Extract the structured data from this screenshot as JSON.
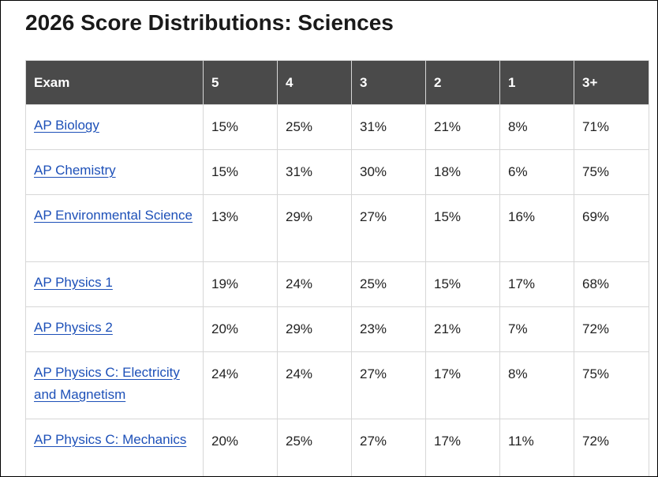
{
  "page": {
    "title": "2026 Score Distributions: Sciences"
  },
  "table": {
    "headers": [
      "Exam",
      "5",
      "4",
      "3",
      "2",
      "1",
      "3+"
    ],
    "rows": [
      {
        "exam": "AP Biology",
        "values": [
          "15%",
          "25%",
          "31%",
          "21%",
          "8%",
          "71%"
        ]
      },
      {
        "exam": "AP Chemistry",
        "values": [
          "15%",
          "31%",
          "30%",
          "18%",
          "6%",
          "75%"
        ]
      },
      {
        "exam": "AP Environmental Science",
        "values": [
          "13%",
          "29%",
          "27%",
          "15%",
          "16%",
          "69%"
        ]
      },
      {
        "exam": "AP Physics 1",
        "values": [
          "19%",
          "24%",
          "25%",
          "15%",
          "17%",
          "68%"
        ]
      },
      {
        "exam": "AP Physics 2",
        "values": [
          "20%",
          "29%",
          "23%",
          "21%",
          "7%",
          "72%"
        ]
      },
      {
        "exam": "AP Physics C: Electricity and Magnetism",
        "values": [
          "24%",
          "24%",
          "27%",
          "17%",
          "8%",
          "75%"
        ]
      },
      {
        "exam": "AP Physics C: Mechanics",
        "values": [
          "20%",
          "25%",
          "27%",
          "17%",
          "11%",
          "72%"
        ]
      }
    ]
  },
  "colors": {
    "header_bg": "#4a4a4a",
    "header_text": "#ffffff",
    "link": "#1d50b8",
    "border": "#d7d7d7"
  }
}
